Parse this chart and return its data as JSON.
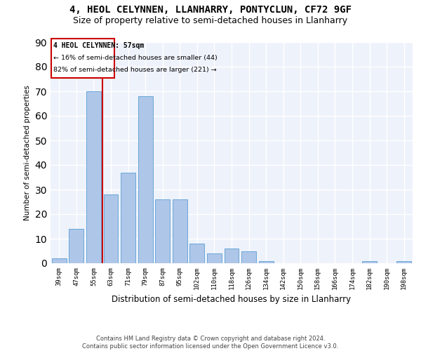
{
  "title_line1": "4, HEOL CELYNNEN, LLANHARRY, PONTYCLUN, CF72 9GF",
  "title_line2": "Size of property relative to semi-detached houses in Llanharry",
  "xlabel": "Distribution of semi-detached houses by size in Llanharry",
  "ylabel": "Number of semi-detached properties",
  "footer_line1": "Contains HM Land Registry data © Crown copyright and database right 2024.",
  "footer_line2": "Contains public sector information licensed under the Open Government Licence v3.0.",
  "annotation_line1": "4 HEOL CELYNNEN: 57sqm",
  "annotation_line2": "← 16% of semi-detached houses are smaller (44)",
  "annotation_line3": "82% of semi-detached houses are larger (221) →",
  "bar_values": [
    2,
    14,
    70,
    28,
    37,
    68,
    26,
    26,
    8,
    4,
    6,
    5,
    1,
    0,
    0,
    0,
    0,
    0,
    1,
    0,
    1
  ],
  "bar_labels": [
    "39sqm",
    "47sqm",
    "55sqm",
    "63sqm",
    "71sqm",
    "79sqm",
    "87sqm",
    "95sqm",
    "102sqm",
    "110sqm",
    "118sqm",
    "126sqm",
    "134sqm",
    "142sqm",
    "150sqm",
    "158sqm",
    "166sqm",
    "174sqm",
    "182sqm",
    "190sqm",
    "198sqm"
  ],
  "bar_color": "#aec6e8",
  "bar_edge_color": "#5a9fd4",
  "vline_color": "#cc0000",
  "annotation_box_color": "#cc0000",
  "ylim": [
    0,
    90
  ],
  "yticks": [
    0,
    10,
    20,
    30,
    40,
    50,
    60,
    70,
    80,
    90
  ],
  "bg_color": "#eef2fb",
  "grid_color": "#ffffff",
  "title_fontsize": 10,
  "subtitle_fontsize": 9
}
